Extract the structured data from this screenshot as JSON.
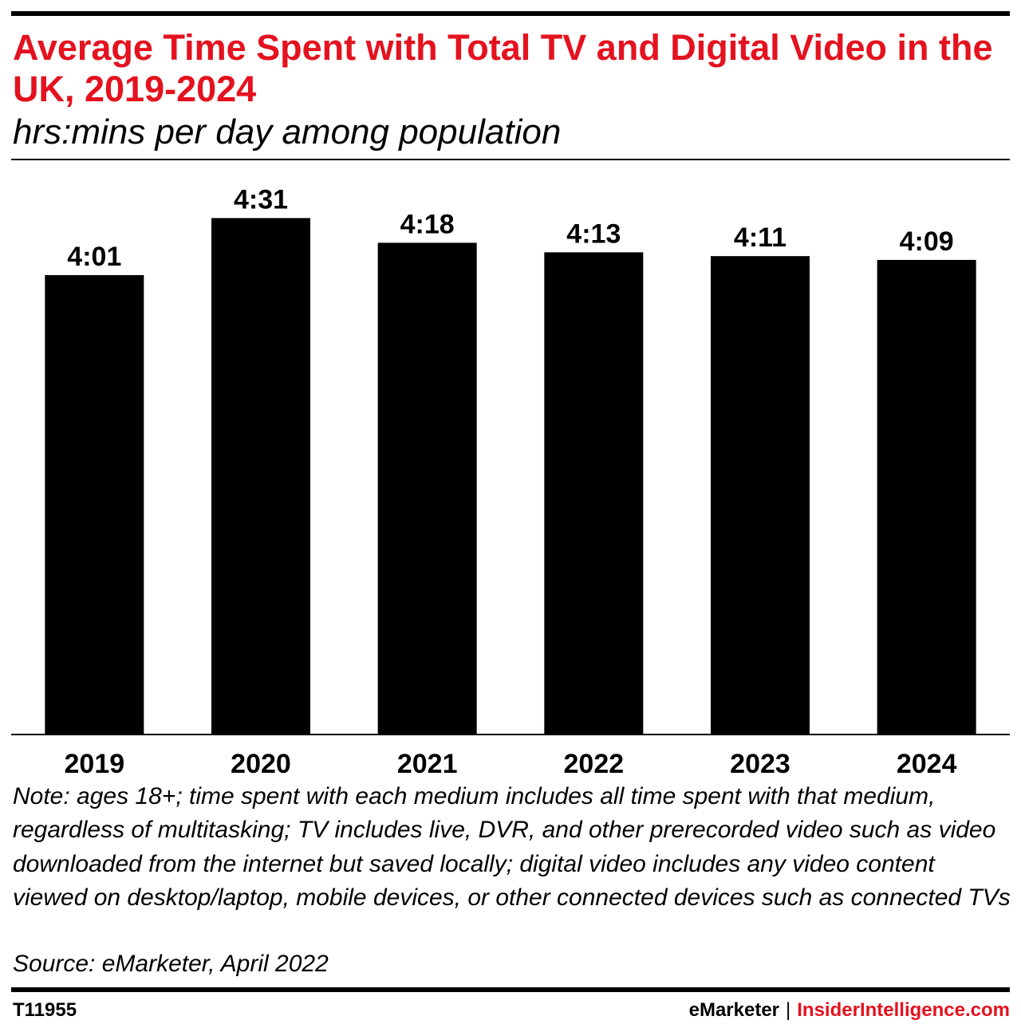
{
  "title": "Average Time Spent with Total TV and Digital Video in the UK, 2019-2024",
  "subtitle": "hrs:mins per day among population",
  "chart_data": {
    "type": "bar",
    "title": "Average Time Spent with Total TV and Digital Video in the UK, 2019-2024",
    "subtitle": "hrs:mins per day among population",
    "categories": [
      "2019",
      "2020",
      "2021",
      "2022",
      "2023",
      "2024"
    ],
    "values": [
      241,
      271,
      258,
      253,
      251,
      249
    ],
    "value_labels": [
      "4:01",
      "4:31",
      "4:18",
      "4:13",
      "4:11",
      "4:09"
    ],
    "ylim": [
      0,
      300
    ],
    "grid": false,
    "legend": "none",
    "bar_color": "#000000"
  },
  "note": "Note: ages 18+; time spent with each medium includes all time spent with that medium, regardless of multitasking; TV includes live, DVR, and other prerecorded video such as video downloaded from the internet but saved locally; digital video includes any video content viewed on desktop/laptop, mobile devices, or other connected devices such as connected TVs",
  "source": "Source: eMarketer, April 2022",
  "footer": {
    "chart_id": "T11955",
    "brand_primary": "eMarketer",
    "separator": "|",
    "brand_secondary": "InsiderIntelligence.com"
  },
  "colors": {
    "accent": "#e4121f",
    "text": "#000000"
  }
}
